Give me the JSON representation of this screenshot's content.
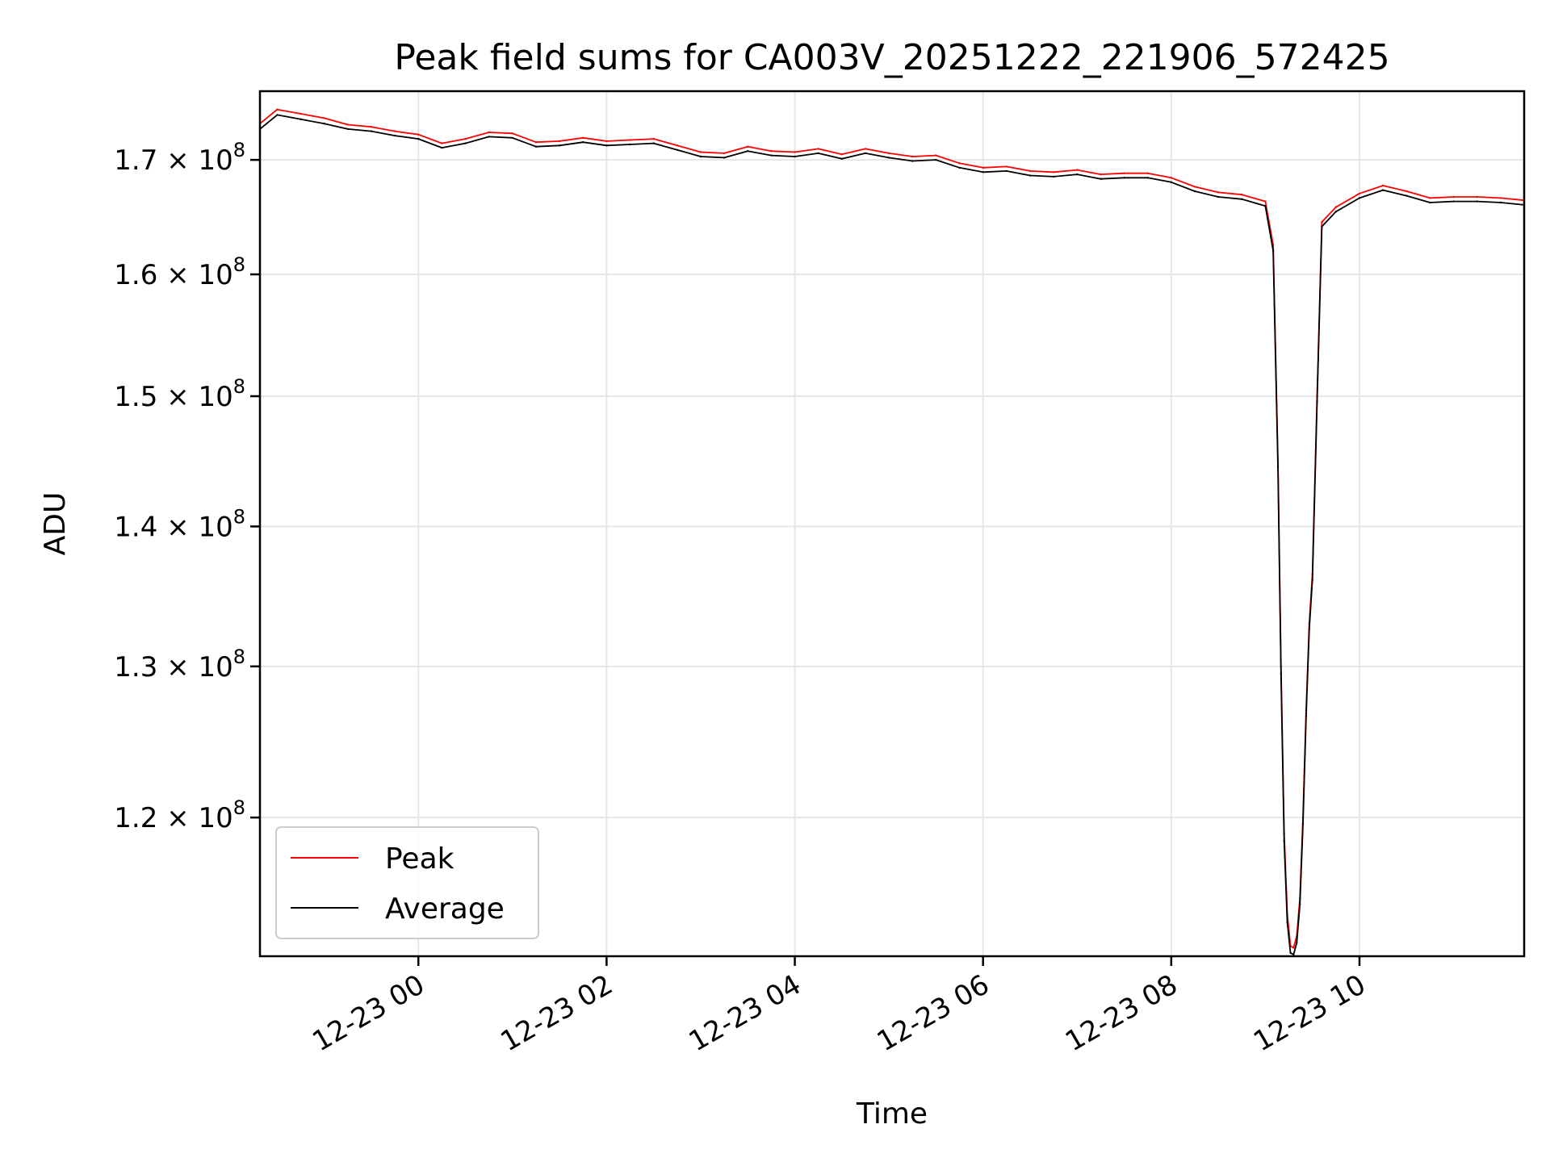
{
  "chart_data": {
    "type": "line",
    "title": "Peak field sums for CA003V_20251222_221906_572425",
    "xlabel": "Time",
    "ylabel": "ADU",
    "yscale": "log",
    "grid": true,
    "legend_position": "lower-left",
    "xlim": [
      "2025-12-22 22:19",
      "2025-12-23 11:45"
    ],
    "ylim": [
      111500000,
      176300000
    ],
    "x_ticks": [
      {
        "value": "2025-12-23 00:00",
        "label": "12-23 00"
      },
      {
        "value": "2025-12-23 02:00",
        "label": "12-23 02"
      },
      {
        "value": "2025-12-23 04:00",
        "label": "12-23 04"
      },
      {
        "value": "2025-12-23 06:00",
        "label": "12-23 06"
      },
      {
        "value": "2025-12-23 08:00",
        "label": "12-23 08"
      },
      {
        "value": "2025-12-23 10:00",
        "label": "12-23 10"
      }
    ],
    "y_ticks": [
      {
        "value": 120000000,
        "mantissa": "1.2",
        "exponent": "8"
      },
      {
        "value": 130000000,
        "mantissa": "1.3",
        "exponent": "8"
      },
      {
        "value": 140000000,
        "mantissa": "1.4",
        "exponent": "8"
      },
      {
        "value": 150000000,
        "mantissa": "1.5",
        "exponent": "8"
      },
      {
        "value": 160000000,
        "mantissa": "1.6",
        "exponent": "8"
      },
      {
        "value": 170000000,
        "mantissa": "1.7",
        "exponent": "8"
      }
    ],
    "series": [
      {
        "name": "Peak",
        "color": "#ff0000",
        "x": [
          "2025-12-22 22:19",
          "2025-12-22 22:30",
          "2025-12-22 22:45",
          "2025-12-22 23:00",
          "2025-12-22 23:15",
          "2025-12-22 23:30",
          "2025-12-22 23:45",
          "2025-12-23 00:00",
          "2025-12-23 00:15",
          "2025-12-23 00:30",
          "2025-12-23 00:45",
          "2025-12-23 01:00",
          "2025-12-23 01:15",
          "2025-12-23 01:30",
          "2025-12-23 01:45",
          "2025-12-23 02:00",
          "2025-12-23 02:15",
          "2025-12-23 02:30",
          "2025-12-23 02:45",
          "2025-12-23 03:00",
          "2025-12-23 03:15",
          "2025-12-23 03:30",
          "2025-12-23 03:45",
          "2025-12-23 04:00",
          "2025-12-23 04:15",
          "2025-12-23 04:30",
          "2025-12-23 04:45",
          "2025-12-23 05:00",
          "2025-12-23 05:15",
          "2025-12-23 05:30",
          "2025-12-23 05:45",
          "2025-12-23 06:00",
          "2025-12-23 06:15",
          "2025-12-23 06:30",
          "2025-12-23 06:45",
          "2025-12-23 07:00",
          "2025-12-23 07:15",
          "2025-12-23 07:30",
          "2025-12-23 07:45",
          "2025-12-23 08:00",
          "2025-12-23 08:15",
          "2025-12-23 08:30",
          "2025-12-23 08:45",
          "2025-12-23 09:00",
          "2025-12-23 09:05",
          "2025-12-23 09:08",
          "2025-12-23 09:10",
          "2025-12-23 09:12",
          "2025-12-23 09:14",
          "2025-12-23 09:16",
          "2025-12-23 09:18",
          "2025-12-23 09:20",
          "2025-12-23 09:22",
          "2025-12-23 09:24",
          "2025-12-23 09:26",
          "2025-12-23 09:28",
          "2025-12-23 09:30",
          "2025-12-23 09:33",
          "2025-12-23 09:36",
          "2025-12-23 09:45",
          "2025-12-23 10:00",
          "2025-12-23 10:15",
          "2025-12-23 10:30",
          "2025-12-23 10:45",
          "2025-12-23 11:00",
          "2025-12-23 11:15",
          "2025-12-23 11:30",
          "2025-12-23 11:45"
        ],
        "values": [
          173300000,
          174600000,
          174200000,
          173800000,
          173200000,
          173000000,
          172600000,
          172300000,
          171500000,
          171900000,
          172500000,
          172400000,
          171600000,
          171700000,
          172000000,
          171700000,
          171800000,
          171900000,
          171300000,
          170700000,
          170600000,
          171200000,
          170800000,
          170700000,
          171000000,
          170500000,
          171000000,
          170600000,
          170300000,
          170400000,
          169700000,
          169300000,
          169400000,
          169000000,
          168900000,
          169100000,
          168700000,
          168800000,
          168800000,
          168400000,
          167600000,
          167100000,
          166900000,
          166300000,
          162500000,
          145000000,
          130000000,
          119000000,
          114000000,
          112100000,
          112000000,
          112700000,
          115000000,
          120000000,
          127000000,
          133000000,
          136500000,
          150000000,
          164500000,
          165800000,
          167000000,
          167700000,
          167200000,
          166600000,
          166700000,
          166700000,
          166600000,
          166400000
        ]
      },
      {
        "name": "Average",
        "color": "#000000",
        "x": [
          "2025-12-22 22:19",
          "2025-12-22 22:30",
          "2025-12-22 22:45",
          "2025-12-22 23:00",
          "2025-12-22 23:15",
          "2025-12-22 23:30",
          "2025-12-22 23:45",
          "2025-12-23 00:00",
          "2025-12-23 00:15",
          "2025-12-23 00:30",
          "2025-12-23 00:45",
          "2025-12-23 01:00",
          "2025-12-23 01:15",
          "2025-12-23 01:30",
          "2025-12-23 01:45",
          "2025-12-23 02:00",
          "2025-12-23 02:15",
          "2025-12-23 02:30",
          "2025-12-23 02:45",
          "2025-12-23 03:00",
          "2025-12-23 03:15",
          "2025-12-23 03:30",
          "2025-12-23 03:45",
          "2025-12-23 04:00",
          "2025-12-23 04:15",
          "2025-12-23 04:30",
          "2025-12-23 04:45",
          "2025-12-23 05:00",
          "2025-12-23 05:15",
          "2025-12-23 05:30",
          "2025-12-23 05:45",
          "2025-12-23 06:00",
          "2025-12-23 06:15",
          "2025-12-23 06:30",
          "2025-12-23 06:45",
          "2025-12-23 07:00",
          "2025-12-23 07:15",
          "2025-12-23 07:30",
          "2025-12-23 07:45",
          "2025-12-23 08:00",
          "2025-12-23 08:15",
          "2025-12-23 08:30",
          "2025-12-23 08:45",
          "2025-12-23 09:00",
          "2025-12-23 09:05",
          "2025-12-23 09:08",
          "2025-12-23 09:10",
          "2025-12-23 09:12",
          "2025-12-23 09:14",
          "2025-12-23 09:16",
          "2025-12-23 09:18",
          "2025-12-23 09:20",
          "2025-12-23 09:22",
          "2025-12-23 09:24",
          "2025-12-23 09:26",
          "2025-12-23 09:28",
          "2025-12-23 09:30",
          "2025-12-23 09:33",
          "2025-12-23 09:36",
          "2025-12-23 09:45",
          "2025-12-23 10:00",
          "2025-12-23 10:15",
          "2025-12-23 10:30",
          "2025-12-23 10:45",
          "2025-12-23 11:00",
          "2025-12-23 11:15",
          "2025-12-23 11:30",
          "2025-12-23 11:45"
        ],
        "values": [
          172800000,
          174100000,
          173700000,
          173300000,
          172800000,
          172600000,
          172200000,
          171900000,
          171100000,
          171500000,
          172100000,
          172000000,
          171200000,
          171300000,
          171600000,
          171300000,
          171400000,
          171500000,
          170900000,
          170300000,
          170200000,
          170800000,
          170400000,
          170300000,
          170600000,
          170100000,
          170600000,
          170200000,
          169900000,
          170000000,
          169300000,
          168900000,
          169000000,
          168600000,
          168500000,
          168700000,
          168300000,
          168400000,
          168400000,
          168000000,
          167200000,
          166700000,
          166500000,
          165900000,
          162000000,
          144500000,
          129500000,
          118500000,
          113500000,
          111700000,
          111600000,
          112300000,
          114600000,
          119600000,
          126600000,
          132600000,
          136100000,
          149600000,
          164100000,
          165400000,
          166600000,
          167300000,
          166800000,
          166200000,
          166300000,
          166300000,
          166200000,
          166000000
        ]
      }
    ]
  }
}
